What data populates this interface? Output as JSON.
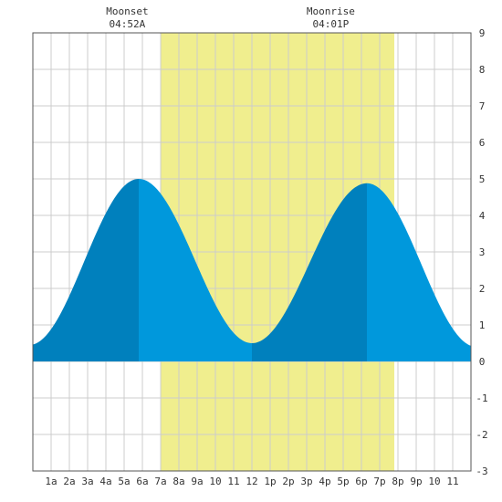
{
  "chart_data": {
    "type": "area",
    "title": "",
    "xlabel": "",
    "ylabel": "",
    "xlim": [
      0,
      24
    ],
    "ylim": [
      -3,
      9
    ],
    "grid": true,
    "x_tick_labels": [
      "1a",
      "2a",
      "3a",
      "4a",
      "5a",
      "6a",
      "7a",
      "8a",
      "9a",
      "10",
      "11",
      "12",
      "1p",
      "2p",
      "3p",
      "4p",
      "5p",
      "6p",
      "7p",
      "8p",
      "9p",
      "10",
      "11"
    ],
    "y_ticks": [
      -3,
      -2,
      -1,
      0,
      1,
      2,
      3,
      4,
      5,
      6,
      7,
      8,
      9
    ],
    "daylight": {
      "start_hour": 7.0,
      "end_hour": 19.8
    },
    "annotations": [
      {
        "label": "Moonset",
        "time": "04:52A",
        "hour": 4.87
      },
      {
        "label": "Moonrise",
        "time": "04:01P",
        "hour": 16.02
      }
    ],
    "tide_extrema": [
      {
        "type": "low",
        "hour": -0.2,
        "height": 0.45
      },
      {
        "type": "high",
        "hour": 5.8,
        "height": 5.0
      },
      {
        "type": "low",
        "hour": 12.0,
        "height": 0.5
      },
      {
        "type": "high",
        "hour": 18.3,
        "height": 4.88
      },
      {
        "type": "low",
        "hour": 24.3,
        "height": 0.4
      }
    ],
    "colors": {
      "daylight": "#f0ee8e",
      "tide_light": "#0098dc",
      "tide_dark": "#0080bd",
      "grid": "#cccccc",
      "frame": "#555555"
    }
  }
}
